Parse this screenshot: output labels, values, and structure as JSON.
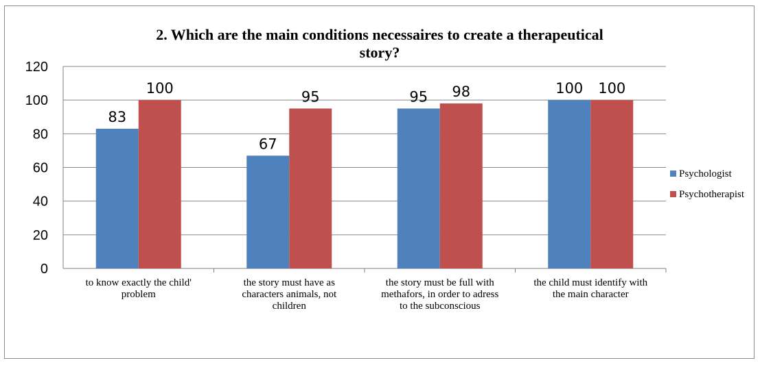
{
  "chart_data": {
    "type": "bar",
    "title_lines": [
      "2. Which are the main conditions necessaires  to create a therapeutical",
      "story?"
    ],
    "categories": [
      [
        "to know exactly the child'",
        "problem"
      ],
      [
        "the story must have as",
        "characters animals, not",
        "children"
      ],
      [
        "the story must be full with",
        "methafors, in order to adress",
        "to the subconscious"
      ],
      [
        "the child must identify with",
        "the main character"
      ]
    ],
    "series": [
      {
        "name": "Psychologist",
        "values": [
          83,
          67,
          95,
          100
        ],
        "color": "#4f81bd"
      },
      {
        "name": "Psychotherapist",
        "values": [
          100,
          95,
          98,
          100
        ],
        "color": "#c0504d"
      }
    ],
    "y_ticks": [
      "0",
      "20",
      "40",
      "60",
      "80",
      "100",
      "120"
    ],
    "ylim": [
      0,
      120
    ],
    "grid": true,
    "legend_position": "right",
    "data_labels": true
  }
}
